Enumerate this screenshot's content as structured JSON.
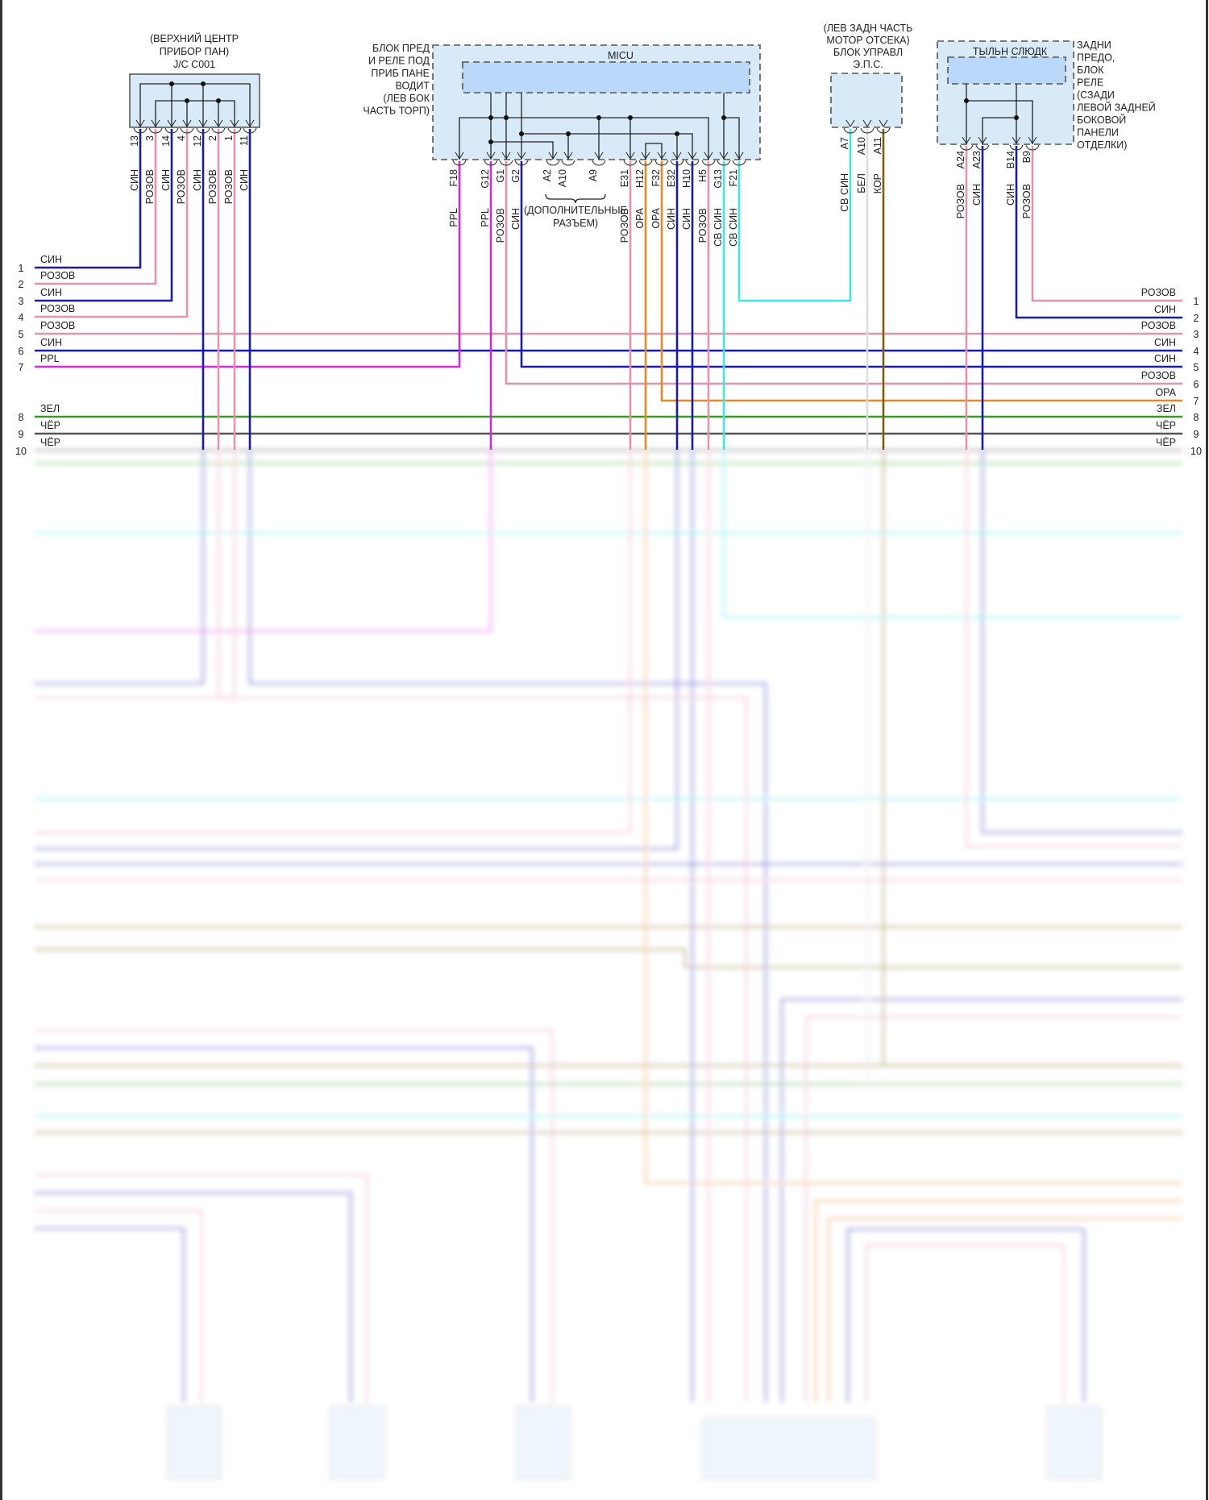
{
  "colors": {
    "blue": "#1a1ab0",
    "pink": "#e592ab",
    "ppl": "#d42ad4",
    "orange": "#e48a22",
    "cyan": "#3ee6e6",
    "green": "#3a9a22",
    "black": "#555555",
    "brown": "#7d5e10",
    "white": "#dcdcdc",
    "box_fill": "#d8e9f8",
    "inner_fill": "#b9d8fa"
  },
  "jc": {
    "title": [
      "(ВЕРХНИЙ ЦЕНТР",
      "ПРИБОР ПАН)",
      "J/C C001"
    ],
    "pins": [
      "13",
      "3",
      "14",
      "4",
      "12",
      "2",
      "1",
      "11"
    ],
    "wires": [
      "СИН",
      "РОЗОВ",
      "СИН",
      "РОЗОВ",
      "СИН",
      "РОЗОВ",
      "РОЗОВ",
      "СИН"
    ]
  },
  "micu": {
    "label": [
      "БЛОК ПРЕД",
      "И РЕЛЕ ПОД",
      "ПРИБ ПАНЕ",
      "ВОДИТ",
      "(ЛЕВ БОК",
      "ЧАСТЬ ТОРП)"
    ],
    "name": "MICU",
    "pins": [
      "F18",
      "G12",
      "G1",
      "G2",
      "A2",
      "A10",
      "A9",
      "E31",
      "H12",
      "F32",
      "E32",
      "H10",
      "H5",
      "G13",
      "F21"
    ],
    "wires": [
      "PPL",
      "PPL",
      "РОЗОВ",
      "СИН",
      "",
      "",
      "",
      "РОЗОВ",
      "ОРА",
      "ОРА",
      "СИН",
      "СИН",
      "РОЗОВ",
      "СВ СИН",
      "СВ СИН"
    ],
    "extra_note": [
      "(ДОПОЛНИТЕЛЬНЫЕ",
      "РАЗЪЕМ)"
    ]
  },
  "eps": {
    "title": [
      "(ЛЕВ ЗАДН ЧАСТЬ",
      "МОТОР ОТСЕКА)",
      "БЛОК УПРАВЛ",
      "Э.П.С."
    ],
    "pins": [
      "A7",
      "A10",
      "A11"
    ],
    "wires": [
      "СВ СИН",
      "БЕЛ",
      "КОР"
    ]
  },
  "rear": {
    "name": "ТЫЛЬН СЛЮДК",
    "label": [
      "ЗАДНИ",
      "ПРЕДО,",
      "БЛОК",
      "РЕЛЕ",
      "(СЗАДИ",
      "ЛЕВОЙ ЗАДНЕЙ",
      "БОКОВОЙ",
      "ПАНЕЛИ",
      "ОТДЕЛКИ)"
    ],
    "pins": [
      "A24",
      "A23",
      "B14",
      "B9"
    ],
    "wires": [
      "РОЗОВ",
      "СИН",
      "СИН",
      "РОЗОВ"
    ]
  },
  "rows_left": [
    {
      "num": "1",
      "label": "СИН"
    },
    {
      "num": "2",
      "label": "РОЗОВ"
    },
    {
      "num": "3",
      "label": "СИН"
    },
    {
      "num": "4",
      "label": "РОЗОВ"
    },
    {
      "num": "5",
      "label": "РОЗОВ"
    },
    {
      "num": "6",
      "label": "СИН"
    },
    {
      "num": "7",
      "label": "PPL"
    },
    {
      "num": "8",
      "label": "ЗЕЛ"
    },
    {
      "num": "9",
      "label": "ЧЁР"
    },
    {
      "num": "10",
      "label": "ЧЁР"
    }
  ],
  "rows_right": [
    {
      "num": "1",
      "label": "РОЗОВ"
    },
    {
      "num": "2",
      "label": "СИН"
    },
    {
      "num": "3",
      "label": "РОЗОВ"
    },
    {
      "num": "4",
      "label": "СИН"
    },
    {
      "num": "5",
      "label": "СИН"
    },
    {
      "num": "6",
      "label": "РОЗОВ"
    },
    {
      "num": "7",
      "label": "ОРА"
    },
    {
      "num": "8",
      "label": "ЗЕЛ"
    },
    {
      "num": "9",
      "label": "ЧЁР"
    },
    {
      "num": "10",
      "label": "ЧЁР"
    }
  ]
}
